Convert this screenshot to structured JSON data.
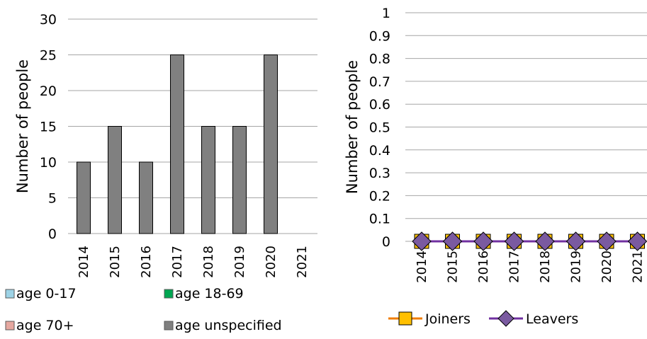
{
  "chart_data": [
    {
      "type": "bar",
      "ylabel": "Number of people",
      "xlabel": "",
      "ylim": [
        0,
        30
      ],
      "yticks": [
        0,
        5,
        10,
        15,
        20,
        25,
        30
      ],
      "categories": [
        "2014",
        "2015",
        "2016",
        "2017",
        "2018",
        "2019",
        "2020",
        "2021"
      ],
      "stacked": true,
      "grid": true,
      "legend_position": "bottom",
      "series": [
        {
          "name": "age 0-17",
          "color": "#9dd3e6",
          "values": [
            0,
            0,
            0,
            0,
            0,
            0,
            0,
            0
          ]
        },
        {
          "name": "age 18-69",
          "color": "#00a651",
          "values": [
            0,
            0,
            0,
            0,
            0,
            0,
            0,
            0
          ]
        },
        {
          "name": "age 70+",
          "color": "#e6a8a0",
          "values": [
            0,
            0,
            0,
            0,
            0,
            0,
            0,
            0
          ]
        },
        {
          "name": "age unspecified",
          "color": "#808080",
          "values": [
            10,
            15,
            10,
            25,
            15,
            15,
            25,
            0
          ]
        }
      ]
    },
    {
      "type": "line",
      "ylabel": "Number of people",
      "xlabel": "",
      "ylim": [
        0,
        1
      ],
      "yticks": [
        "0",
        "0.1",
        "0.2",
        "0.3",
        "0.4",
        "0.5",
        "0.6",
        "0.7",
        "0.8",
        "0.9",
        "1"
      ],
      "categories": [
        "2014",
        "2015",
        "2016",
        "2017",
        "2018",
        "2019",
        "2020",
        "2021"
      ],
      "grid": true,
      "legend_position": "bottom",
      "series": [
        {
          "name": "Joiners",
          "color": "#f07c00",
          "marker": "square",
          "marker_fill": "#ffc000",
          "values": [
            0,
            0,
            0,
            0,
            0,
            0,
            0,
            0
          ]
        },
        {
          "name": "Leavers",
          "color": "#7030a0",
          "marker": "diamond",
          "marker_fill": "#7a5aa0",
          "values": [
            0,
            0,
            0,
            0,
            0,
            0,
            0,
            0
          ]
        }
      ]
    }
  ]
}
